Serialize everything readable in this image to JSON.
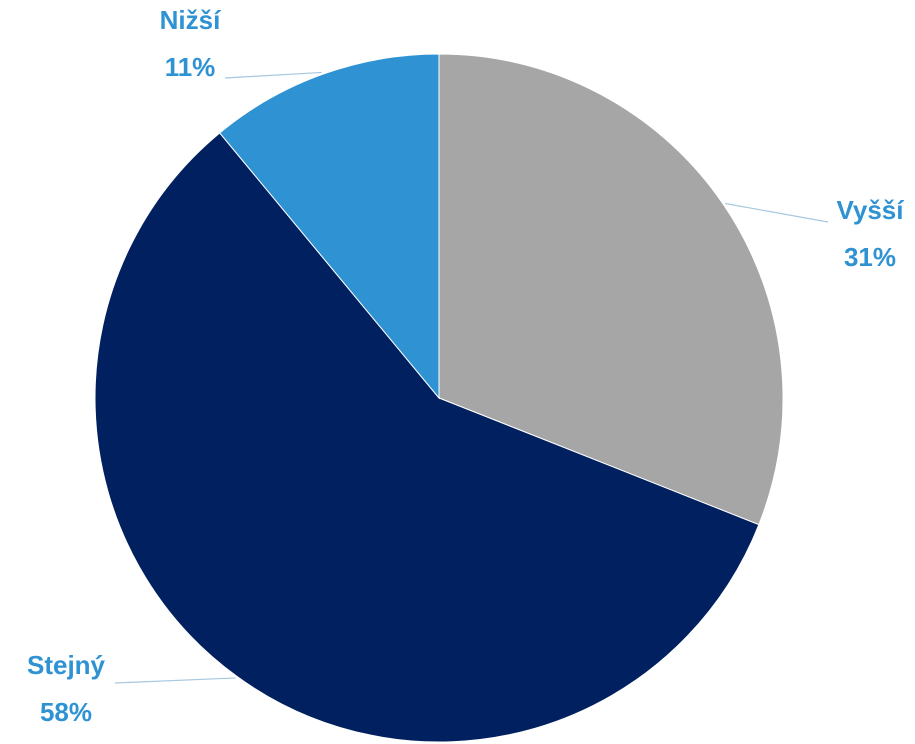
{
  "chart_data": {
    "type": "pie",
    "categories": [
      "Vyšší",
      "Stejný",
      "Nižší"
    ],
    "values": [
      31,
      58,
      11
    ],
    "value_labels": [
      "31%",
      "58%",
      "11%"
    ],
    "colors": [
      "#a6a6a6",
      "#002060",
      "#2e92d3"
    ]
  }
}
